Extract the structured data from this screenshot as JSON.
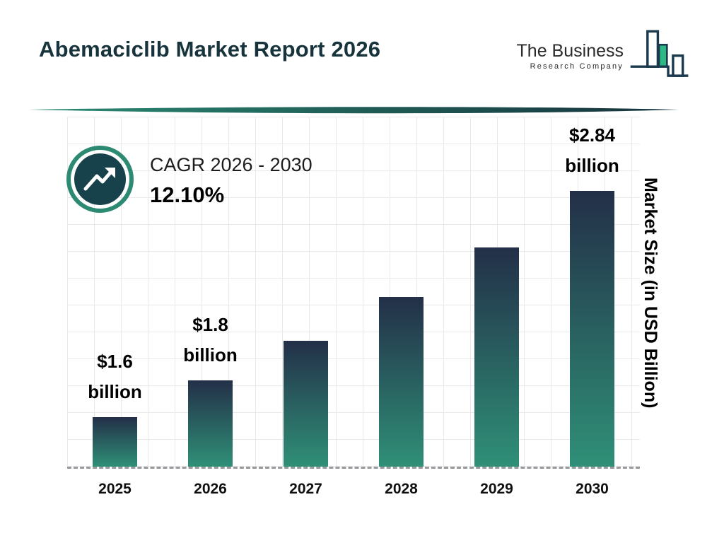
{
  "header": {
    "title": "Abemaciclib Market Report 2026"
  },
  "logo": {
    "line1": "The Business",
    "line2": "Research Company",
    "icon": "bar-chart-logo-icon",
    "outline_color": "#1c3a4d",
    "accent_green": "#2eb886"
  },
  "cagr": {
    "label": "CAGR 2026 - 2030",
    "value": "12.10%",
    "icon": "trend-up-icon",
    "ring_color": "#2d8a72",
    "circle_color": "#17424c"
  },
  "chart_data": {
    "type": "bar",
    "title": "Abemaciclib Market Report 2026",
    "categories": [
      "2025",
      "2026",
      "2027",
      "2028",
      "2029",
      "2030"
    ],
    "values": [
      1.6,
      1.8,
      2.02,
      2.26,
      2.53,
      2.84
    ],
    "bar_labels": [
      "$1.6 billion",
      "$1.8 billion",
      "",
      "",
      "",
      "$2.84 billion"
    ],
    "xlabel": "",
    "ylabel": "Market Size (in USD Billion)",
    "unit": "USD Billion",
    "grid": true,
    "axis_baseline": "dashed",
    "legend": "none",
    "colors": {
      "bar_top": "#232f48",
      "bar_bottom": "#2f9077",
      "grid_line": "#e9e9e9",
      "divider_left": "#2a8a72",
      "divider_right": "#16323c"
    }
  }
}
